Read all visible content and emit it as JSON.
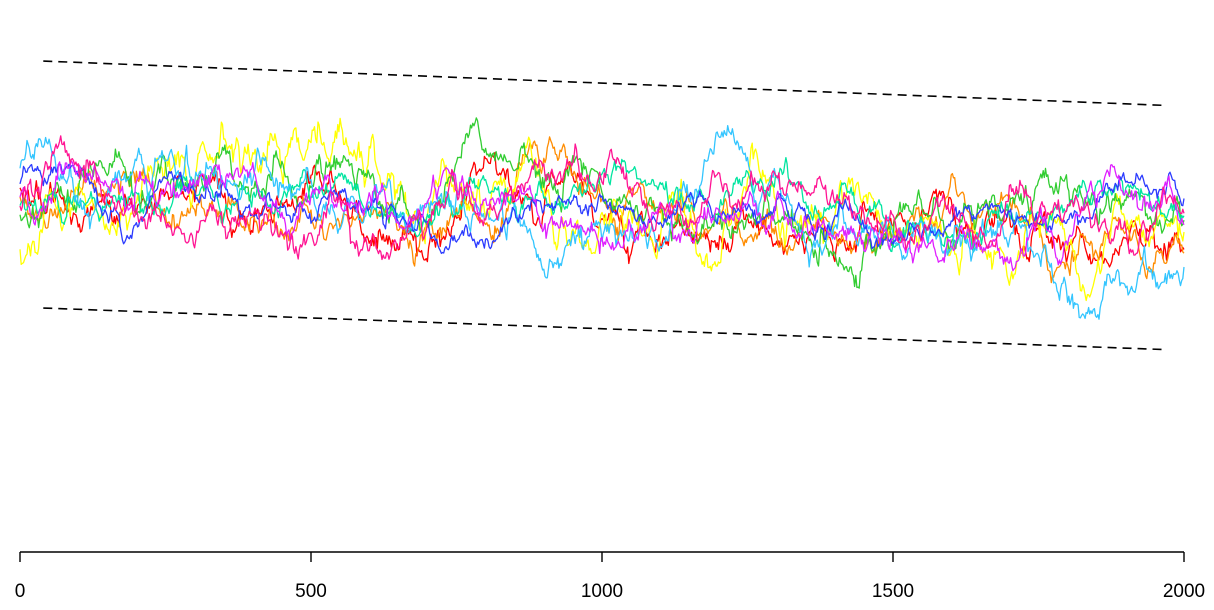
{
  "chart_data": {
    "type": "line",
    "title": "",
    "xlabel": "",
    "ylabel": "",
    "xlim": [
      0,
      2000
    ],
    "ylim": [
      0,
      1
    ],
    "x_ticks": [
      0,
      500,
      1000,
      1500,
      2000
    ],
    "x_tick_labels": [
      "0",
      "500",
      "1000",
      "1500",
      "2000"
    ],
    "y_axis_visible": false,
    "grid": false,
    "legend": "none",
    "n_points_per_series": 2000,
    "series": [
      {
        "color": "#ff0000",
        "y_at_ticks": [
          0.66,
          0.63,
          0.62,
          0.58,
          0.55
        ],
        "spread": 0.045
      },
      {
        "color": "#ff8c00",
        "y_at_ticks": [
          0.65,
          0.64,
          0.63,
          0.6,
          0.53
        ],
        "spread": 0.04
      },
      {
        "color": "#ffff00",
        "y_at_ticks": [
          0.55,
          0.75,
          0.63,
          0.57,
          0.53
        ],
        "spread": 0.055
      },
      {
        "color": "#32cd32",
        "y_at_ticks": [
          0.61,
          0.66,
          0.64,
          0.57,
          0.6
        ],
        "spread": 0.045
      },
      {
        "color": "#00e5a0",
        "y_at_ticks": [
          0.63,
          0.65,
          0.67,
          0.6,
          0.61
        ],
        "spread": 0.035
      },
      {
        "color": "#33c5ff",
        "y_at_ticks": [
          0.71,
          0.66,
          0.6,
          0.58,
          0.56
        ],
        "spread": 0.045
      },
      {
        "color": "#2b3bff",
        "y_at_ticks": [
          0.66,
          0.63,
          0.62,
          0.6,
          0.6
        ],
        "spread": 0.03
      },
      {
        "color": "#e020ff",
        "y_at_ticks": [
          0.64,
          0.64,
          0.6,
          0.58,
          0.59
        ],
        "spread": 0.04
      },
      {
        "color": "#ff1493",
        "y_at_ticks": [
          0.64,
          0.63,
          0.62,
          0.61,
          0.56
        ],
        "spread": 0.04
      }
    ],
    "bounds": [
      {
        "style": "dashed",
        "color": "#000000",
        "x": [
          40,
          1970
        ],
        "y": [
          0.89,
          0.81
        ]
      },
      {
        "style": "dashed",
        "color": "#000000",
        "x": [
          40,
          1970
        ],
        "y": [
          0.445,
          0.37
        ]
      }
    ]
  }
}
